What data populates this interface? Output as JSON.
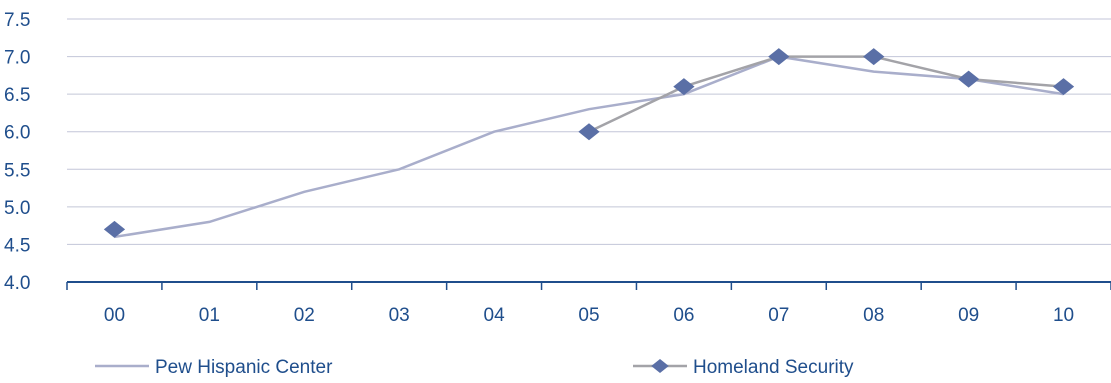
{
  "chart_data": {
    "type": "line",
    "categories": [
      "00",
      "01",
      "02",
      "03",
      "04",
      "05",
      "06",
      "07",
      "08",
      "09",
      "10"
    ],
    "y_ticks": [
      "4.0",
      "4.5",
      "5.0",
      "5.5",
      "6.0",
      "6.5",
      "7.0",
      "7.5"
    ],
    "ylim": [
      4.0,
      7.5
    ],
    "grid": "horizontal",
    "legend_position": "bottom",
    "series": [
      {
        "name": "Pew Hispanic Center",
        "color": "#a9aecb",
        "marker": "none",
        "values": [
          4.6,
          4.8,
          5.2,
          5.5,
          6.0,
          6.3,
          6.5,
          7.0,
          6.8,
          6.7,
          6.5
        ]
      },
      {
        "name": "Homeland Security",
        "color": "#a3a3a8",
        "marker": "diamond",
        "marker_color": "#5a6fa6",
        "values": [
          4.7,
          null,
          null,
          null,
          null,
          6.0,
          6.6,
          7.0,
          7.0,
          6.7,
          6.6
        ]
      }
    ]
  }
}
